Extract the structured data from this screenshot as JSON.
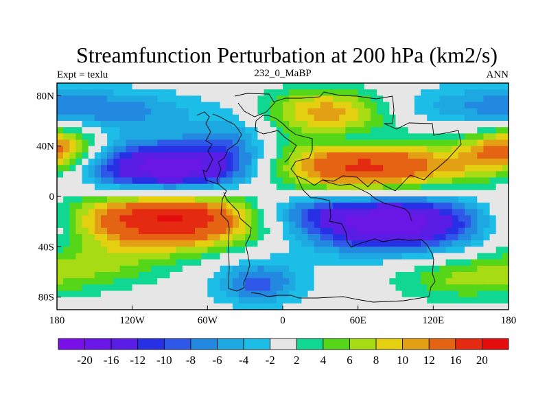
{
  "chart_data": {
    "type": "heatmap",
    "title": "Streamfunction Perturbation at 200 hPa (km2/s)",
    "left_label": "Expt = texlu",
    "center_label": "232_0_MaBP",
    "right_label": "ANN",
    "x_ticks": [
      "180",
      "120W",
      "60W",
      "0",
      "60E",
      "120E",
      "180"
    ],
    "x_tick_lons": [
      -180,
      -120,
      -60,
      0,
      60,
      120,
      180
    ],
    "y_ticks": [
      "80N",
      "40N",
      "0",
      "40S",
      "80S"
    ],
    "y_tick_lats": [
      80,
      40,
      0,
      -40,
      -80
    ],
    "xlim": [
      -180,
      180
    ],
    "ylim": [
      -90,
      90
    ],
    "colorbar": {
      "labels": [
        "-20",
        "-16",
        "-12",
        "-10",
        "-8",
        "-6",
        "-4",
        "-2",
        "2",
        "4",
        "6",
        "8",
        "10",
        "12",
        "16",
        "20"
      ],
      "levels": [
        -20,
        -16,
        -12,
        -10,
        -8,
        -6,
        -4,
        -2,
        2,
        4,
        6,
        8,
        10,
        12,
        16,
        20
      ],
      "colors": [
        "#7a10e8",
        "#6a16e6",
        "#5a1de6",
        "#2830e6",
        "#2f58e8",
        "#2288e0",
        "#1ea8e2",
        "#1cbde6",
        "#e6e6e6",
        "#10d892",
        "#55d618",
        "#a7db14",
        "#e4d011",
        "#e4a014",
        "#e46414",
        "#e42a10",
        "#e40c0c"
      ]
    },
    "features": [
      {
        "lon": -85,
        "lat": 20,
        "value": -22,
        "rx": 55,
        "ry": 16
      },
      {
        "lon": -90,
        "lat": -16,
        "value": 22,
        "rx": 60,
        "ry": 18
      },
      {
        "lon": 60,
        "lat": 22,
        "value": 18,
        "rx": 65,
        "ry": 16
      },
      {
        "lon": 85,
        "lat": -20,
        "value": -20,
        "rx": 60,
        "ry": 17
      },
      {
        "lon": 35,
        "lat": 68,
        "value": 11,
        "rx": 35,
        "ry": 13
      },
      {
        "lon": -20,
        "lat": -68,
        "value": -9,
        "rx": 25,
        "ry": 13
      },
      {
        "lon": -130,
        "lat": 68,
        "value": -6,
        "rx": 50,
        "ry": 12
      },
      {
        "lon": 150,
        "lat": 72,
        "value": -5,
        "rx": 50,
        "ry": 12
      },
      {
        "lon": -175,
        "lat": 42,
        "value": 9,
        "rx": 22,
        "ry": 12
      },
      {
        "lon": 170,
        "lat": 30,
        "value": 7,
        "rx": 25,
        "ry": 12
      },
      {
        "lon": -150,
        "lat": -55,
        "value": 5,
        "rx": 40,
        "ry": 14
      },
      {
        "lon": 140,
        "lat": -65,
        "value": 6,
        "rx": 40,
        "ry": 13
      },
      {
        "lon": -40,
        "lat": 45,
        "value": -5,
        "rx": 20,
        "ry": 15
      },
      {
        "lon": 10,
        "lat": -10,
        "value": -5,
        "rx": 30,
        "ry": 10
      },
      {
        "lon": 60,
        "lat": 45,
        "value": -4,
        "rx": 25,
        "ry": 6
      }
    ]
  }
}
